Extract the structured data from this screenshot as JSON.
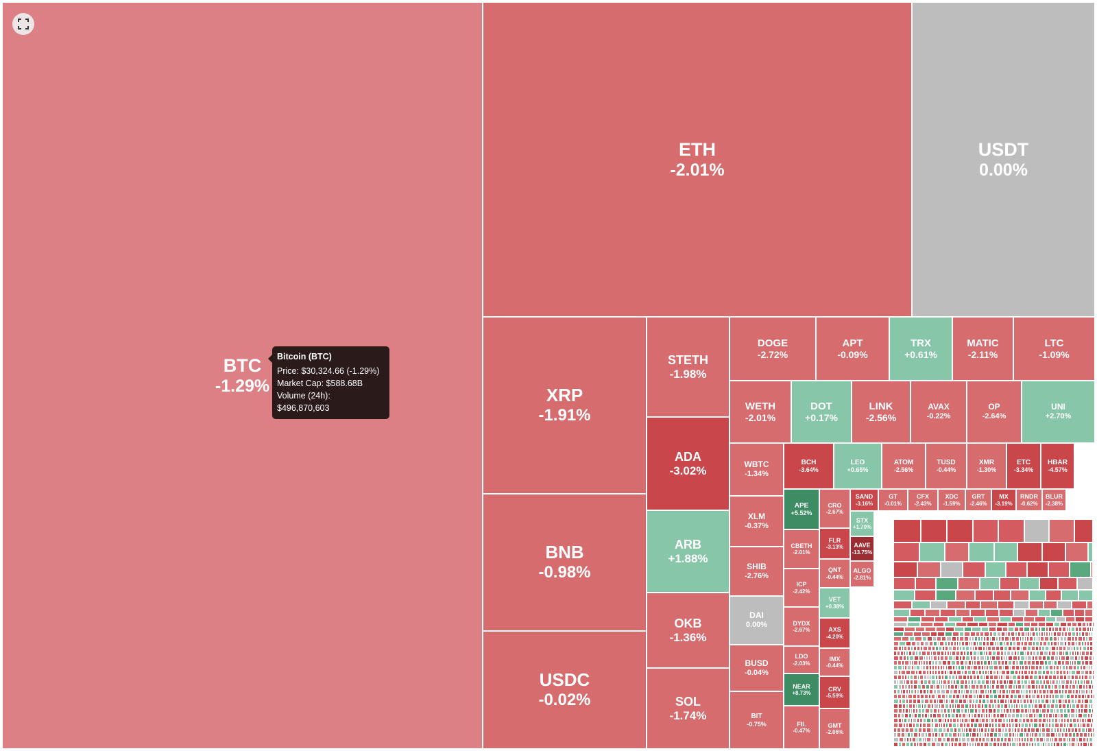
{
  "colors": {
    "btc": "#dc8085",
    "red_light": "#d76c6f",
    "red_mid": "#d45c60",
    "red_deep": "#c9464b",
    "red_dark": "#9b2c31",
    "green_light": "#88c6a9",
    "green_mid": "#5aa87e",
    "green_deep": "#3d8c63",
    "gray": "#bdbdbd"
  },
  "toolbar": {
    "fullscreen_icon": "fullscreen-icon"
  },
  "tooltip": {
    "title": "Bitcoin (BTC)",
    "price": "Price: $30,324.66 (-1.29%)",
    "market_cap": "Market Cap: $588.68B",
    "volume": "Volume (24h): $496,870,603"
  },
  "coins": [
    {
      "symbol": "BTC",
      "change": "-1.29%",
      "color": "btc"
    },
    {
      "symbol": "ETH",
      "change": "-2.01%",
      "color": "red_light"
    },
    {
      "symbol": "USDT",
      "change": "0.00%",
      "color": "gray"
    },
    {
      "symbol": "XRP",
      "change": "-1.91%",
      "color": "red_light"
    },
    {
      "symbol": "BNB",
      "change": "-0.98%",
      "color": "red_light"
    },
    {
      "symbol": "USDC",
      "change": "-0.02%",
      "color": "red_light"
    },
    {
      "symbol": "STETH",
      "change": "-1.98%",
      "color": "red_light"
    },
    {
      "symbol": "ADA",
      "change": "-3.02%",
      "color": "red_deep"
    },
    {
      "symbol": "ARB",
      "change": "+1.88%",
      "color": "green_light"
    },
    {
      "symbol": "OKB",
      "change": "-1.36%",
      "color": "red_light"
    },
    {
      "symbol": "SOL",
      "change": "-1.74%",
      "color": "red_light"
    },
    {
      "symbol": "DOGE",
      "change": "-2.72%",
      "color": "red_light"
    },
    {
      "symbol": "APT",
      "change": "-0.09%",
      "color": "red_light"
    },
    {
      "symbol": "TRX",
      "change": "+0.61%",
      "color": "green_light"
    },
    {
      "symbol": "MATIC",
      "change": "-2.11%",
      "color": "red_light"
    },
    {
      "symbol": "LTC",
      "change": "-1.09%",
      "color": "red_light"
    },
    {
      "symbol": "WETH",
      "change": "-2.01%",
      "color": "red_light"
    },
    {
      "symbol": "DOT",
      "change": "+0.17%",
      "color": "green_light"
    },
    {
      "symbol": "LINK",
      "change": "-2.56%",
      "color": "red_light"
    },
    {
      "symbol": "AVAX",
      "change": "-0.22%",
      "color": "red_light"
    },
    {
      "symbol": "OP",
      "change": "-2.64%",
      "color": "red_light"
    },
    {
      "symbol": "UNI",
      "change": "+2.70%",
      "color": "green_light"
    },
    {
      "symbol": "WBTC",
      "change": "-1.34%",
      "color": "red_light"
    },
    {
      "symbol": "BCH",
      "change": "-3.64%",
      "color": "red_deep"
    },
    {
      "symbol": "LEO",
      "change": "+0.65%",
      "color": "green_light"
    },
    {
      "symbol": "ATOM",
      "change": "-2.56%",
      "color": "red_light"
    },
    {
      "symbol": "TUSD",
      "change": "-0.44%",
      "color": "red_light"
    },
    {
      "symbol": "XMR",
      "change": "-1.30%",
      "color": "red_light"
    },
    {
      "symbol": "ETC",
      "change": "-3.34%",
      "color": "red_deep"
    },
    {
      "symbol": "HBAR",
      "change": "-4.57%",
      "color": "red_deep"
    },
    {
      "symbol": "XLM",
      "change": "-0.37%",
      "color": "red_light"
    },
    {
      "symbol": "SHIB",
      "change": "-2.76%",
      "color": "red_light"
    },
    {
      "symbol": "DAI",
      "change": "0.00%",
      "color": "gray"
    },
    {
      "symbol": "BUSD",
      "change": "-0.04%",
      "color": "red_light"
    },
    {
      "symbol": "BIT",
      "change": "-0.75%",
      "color": "red_light"
    },
    {
      "symbol": "APE",
      "change": "+5.52%",
      "color": "green_deep"
    },
    {
      "symbol": "CRO",
      "change": "-2.67%",
      "color": "red_light"
    },
    {
      "symbol": "SAND",
      "change": "-3.16%",
      "color": "red_deep"
    },
    {
      "symbol": "GT",
      "change": "-0.01%",
      "color": "red_light"
    },
    {
      "symbol": "CFX",
      "change": "-2.43%",
      "color": "red_light"
    },
    {
      "symbol": "XDC",
      "change": "-1.59%",
      "color": "red_light"
    },
    {
      "symbol": "GRT",
      "change": "-2.46%",
      "color": "red_light"
    },
    {
      "symbol": "MX",
      "change": "-3.19%",
      "color": "red_deep"
    },
    {
      "symbol": "RNDR",
      "change": "-0.62%",
      "color": "red_light"
    },
    {
      "symbol": "BLUR",
      "change": "-2.38%",
      "color": "red_light"
    },
    {
      "symbol": "CBETH",
      "change": "-2.01%",
      "color": "red_light"
    },
    {
      "symbol": "FLR",
      "change": "-3.13%",
      "color": "red_deep"
    },
    {
      "symbol": "STX",
      "change": "+1.70%",
      "color": "green_light"
    },
    {
      "symbol": "AAVE",
      "change": "-13.75%",
      "color": "red_dark"
    },
    {
      "symbol": "ICP",
      "change": "-2.42%",
      "color": "red_light"
    },
    {
      "symbol": "QNT",
      "change": "-0.44%",
      "color": "red_light"
    },
    {
      "symbol": "ALGO",
      "change": "-2.81%",
      "color": "red_light"
    },
    {
      "symbol": "DYDX",
      "change": "-2.67%",
      "color": "red_light"
    },
    {
      "symbol": "VET",
      "change": "+0.38%",
      "color": "green_light"
    },
    {
      "symbol": "AXS",
      "change": "-4.20%",
      "color": "red_deep"
    },
    {
      "symbol": "LDO",
      "change": "-2.03%",
      "color": "red_light"
    },
    {
      "symbol": "IMX",
      "change": "-0.44%",
      "color": "red_light"
    },
    {
      "symbol": "NEAR",
      "change": "+8.73%",
      "color": "green_deep"
    },
    {
      "symbol": "CRV",
      "change": "-5.59%",
      "color": "red_deep"
    },
    {
      "symbol": "FIL",
      "change": "-0.47%",
      "color": "red_light"
    },
    {
      "symbol": "GMT",
      "change": "-2.06%",
      "color": "red_light"
    }
  ]
}
